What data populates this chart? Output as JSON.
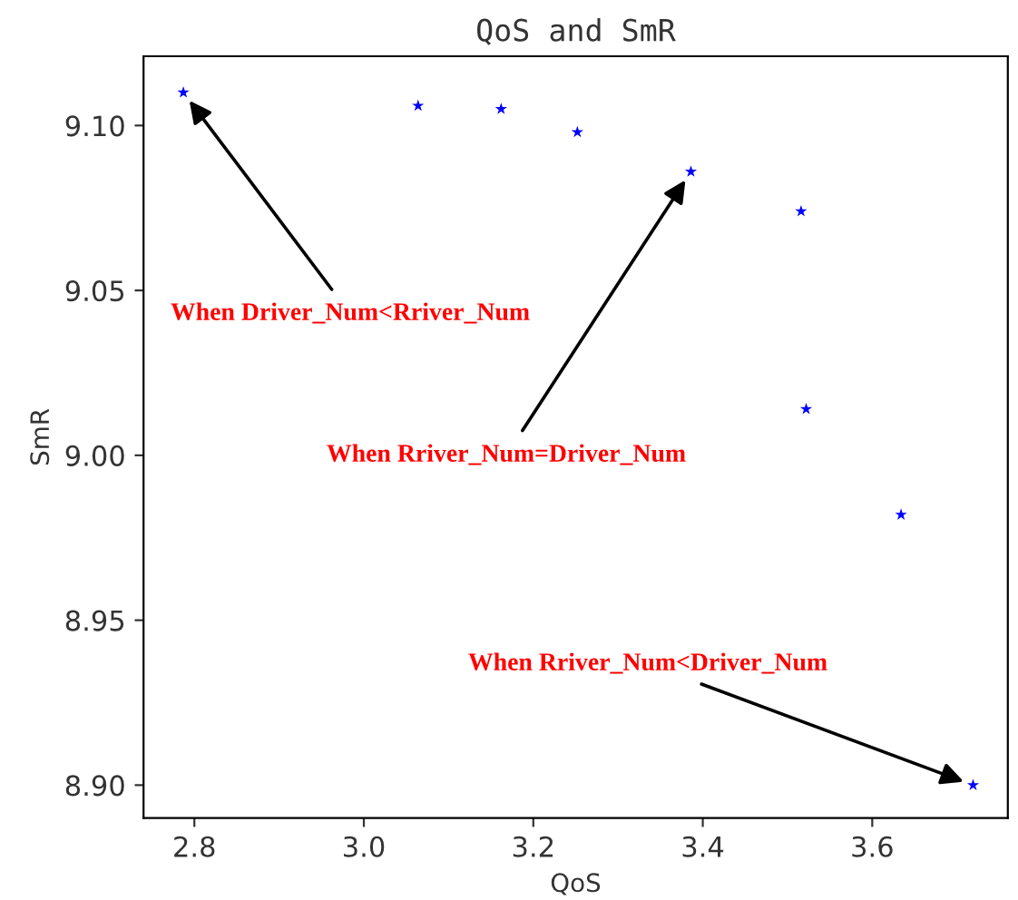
{
  "chart_data": {
    "type": "scatter",
    "title": "QoS and SmR",
    "xlabel": "QoS",
    "ylabel": "SmR",
    "x": [
      2.787,
      3.064,
      3.162,
      3.252,
      3.386,
      3.516,
      3.522,
      3.634,
      3.719
    ],
    "series": [
      {
        "color": "#0000ff",
        "values": [
          9.11,
          9.106,
          9.105,
          9.098,
          9.086,
          9.074,
          9.014,
          8.982,
          8.9
        ]
      }
    ],
    "marker": "star",
    "xlim": [
      2.74,
      3.76
    ],
    "xticks": [
      2.8,
      {
        "value": 3.0,
        "label": "3.0"
      },
      3.2,
      3.4,
      3.6
    ],
    "ylim": [
      8.89,
      9.121
    ],
    "yticks": [
      {
        "value": 8.9,
        "label": "8.90"
      },
      {
        "value": 8.95,
        "label": "8.95"
      },
      {
        "value": 9.0,
        "label": "9.00"
      },
      {
        "value": 9.05,
        "label": "9.05"
      },
      {
        "value": 9.1,
        "label": "9.10"
      }
    ],
    "grid": false,
    "legend": false,
    "annotations": [
      {
        "text": "When Driver_Num<Rriver_Num",
        "x": 2.787,
        "y": 9.11
      },
      {
        "text": "When Rriver_Num=Driver_Num",
        "x": 3.386,
        "y": 9.086
      },
      {
        "text": "When Rriver_Num<Driver_Num",
        "x": 3.719,
        "y": 8.9
      }
    ]
  }
}
